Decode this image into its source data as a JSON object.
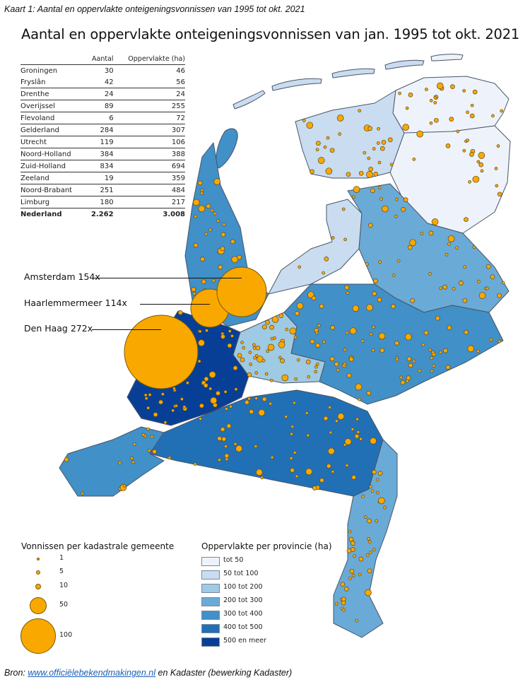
{
  "caption": "Kaart 1: Aantal en oppervlakte onteigeningsvonnissen van 1995 tot okt. 2021",
  "title": "Aantal en oppervlakte onteigeningsvonnissen van jan. 1995 tot okt. 2021",
  "table": {
    "headers": [
      "",
      "Aantal",
      "Oppervlakte (ha)"
    ],
    "rows": [
      {
        "provincie": "Groningen",
        "aantal": "30",
        "oppervlakte": "46"
      },
      {
        "provincie": "Fryslân",
        "aantal": "42",
        "oppervlakte": "56"
      },
      {
        "provincie": "Drenthe",
        "aantal": "24",
        "oppervlakte": "24"
      },
      {
        "provincie": "Overijssel",
        "aantal": "89",
        "oppervlakte": "255"
      },
      {
        "provincie": "Flevoland",
        "aantal": "6",
        "oppervlakte": "72"
      },
      {
        "provincie": "Gelderland",
        "aantal": "284",
        "oppervlakte": "307"
      },
      {
        "provincie": "Utrecht",
        "aantal": "119",
        "oppervlakte": "106"
      },
      {
        "provincie": "Noord-Holland",
        "aantal": "384",
        "oppervlakte": "388"
      },
      {
        "provincie": "Zuid-Holland",
        "aantal": "834",
        "oppervlakte": "694"
      },
      {
        "provincie": "Zeeland",
        "aantal": "19",
        "oppervlakte": "359"
      },
      {
        "provincie": "Noord-Brabant",
        "aantal": "251",
        "oppervlakte": "484"
      },
      {
        "provincie": "Limburg",
        "aantal": "180",
        "oppervlakte": "217"
      }
    ],
    "total": {
      "provincie": "Nederland",
      "aantal": "2.262",
      "oppervlakte": "3.008"
    }
  },
  "callouts": [
    {
      "label": "Amsterdam 154x",
      "count": 154
    },
    {
      "label": "Haarlemmermeer 114x",
      "count": 114
    },
    {
      "label": "Den Haag 272x",
      "count": 272
    }
  ],
  "legend_bubbles": {
    "title": "Vonnissen per kadastrale gemeente",
    "items": [
      {
        "label": "1",
        "value": 1
      },
      {
        "label": "5",
        "value": 5
      },
      {
        "label": "10",
        "value": 10
      },
      {
        "label": "50",
        "value": 50
      },
      {
        "label": "100",
        "value": 100
      }
    ]
  },
  "legend_area": {
    "title": "Oppervlakte per provincie (ha)",
    "items": [
      {
        "label": "tot 50",
        "color": "#eef3fb"
      },
      {
        "label": "50 tot 100",
        "color": "#c9dcf0"
      },
      {
        "label": "100 tot 200",
        "color": "#9fcae3"
      },
      {
        "label": "200 tot 300",
        "color": "#6aaad6"
      },
      {
        "label": "300 tot 400",
        "color": "#4190c8"
      },
      {
        "label": "400 tot 500",
        "color": "#2170b6"
      },
      {
        "label": "500 en meer",
        "color": "#083f96"
      }
    ]
  },
  "source": {
    "prefix": "Bron: ",
    "link": "www.officiëlebekendmakingen.nl",
    "suffix": " en Kadaster (bewerking Kadaster)"
  },
  "colors": {
    "bubble": "#f9a800",
    "border": "#4a5566"
  }
}
